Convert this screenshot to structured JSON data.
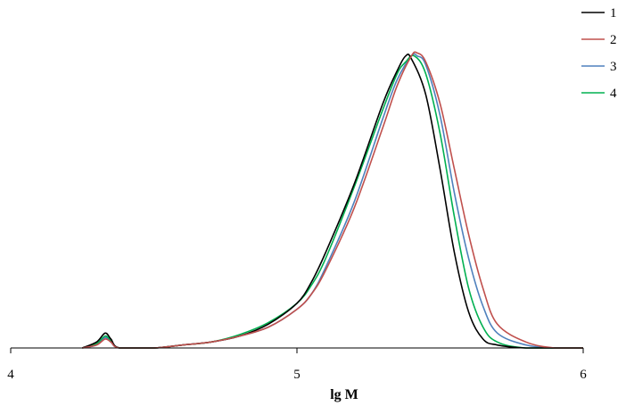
{
  "chart_data": {
    "type": "line",
    "title": "",
    "xlabel": "lg M",
    "ylabel": "",
    "xlim": [
      4,
      6
    ],
    "ylim": [
      0,
      1
    ],
    "x_ticks": [
      "4",
      "5",
      "6"
    ],
    "grid": false,
    "legend_position": "top-right",
    "series": [
      {
        "name": "1",
        "color": "#000000",
        "x": [
          4.25,
          4.3,
          4.33,
          4.35,
          4.38,
          4.5,
          4.6,
          4.7,
          4.8,
          4.9,
          5.0,
          5.05,
          5.1,
          5.2,
          5.3,
          5.35,
          5.38,
          5.4,
          5.45,
          5.5,
          5.55,
          5.6,
          5.65,
          5.7,
          5.8,
          6.0
        ],
        "y": [
          0.0,
          0.02,
          0.05,
          0.03,
          0.0,
          0.0,
          0.01,
          0.02,
          0.04,
          0.08,
          0.15,
          0.22,
          0.32,
          0.55,
          0.82,
          0.93,
          0.98,
          0.97,
          0.85,
          0.6,
          0.32,
          0.12,
          0.03,
          0.01,
          0.0,
          0.0
        ]
      },
      {
        "name": "2",
        "color": "#c0504d",
        "x": [
          4.25,
          4.3,
          4.33,
          4.35,
          4.38,
          4.5,
          4.6,
          4.7,
          4.8,
          4.9,
          5.0,
          5.05,
          5.1,
          5.2,
          5.3,
          5.35,
          5.4,
          5.42,
          5.45,
          5.5,
          5.55,
          5.6,
          5.65,
          5.7,
          5.8,
          5.9,
          6.0
        ],
        "y": [
          0.0,
          0.01,
          0.03,
          0.02,
          0.0,
          0.0,
          0.01,
          0.02,
          0.04,
          0.07,
          0.13,
          0.18,
          0.26,
          0.47,
          0.74,
          0.88,
          0.98,
          0.99,
          0.96,
          0.82,
          0.6,
          0.38,
          0.2,
          0.08,
          0.02,
          0.0,
          0.0
        ]
      },
      {
        "name": "3",
        "color": "#4f81bd",
        "x": [
          4.25,
          4.3,
          4.33,
          4.35,
          4.38,
          4.5,
          4.6,
          4.7,
          4.8,
          4.9,
          5.0,
          5.05,
          5.1,
          5.2,
          5.3,
          5.35,
          5.4,
          5.42,
          5.45,
          5.5,
          5.55,
          5.6,
          5.65,
          5.7,
          5.8,
          5.9,
          6.0
        ],
        "y": [
          0.0,
          0.01,
          0.035,
          0.02,
          0.0,
          0.0,
          0.01,
          0.02,
          0.04,
          0.07,
          0.13,
          0.18,
          0.27,
          0.49,
          0.77,
          0.9,
          0.98,
          0.98,
          0.95,
          0.78,
          0.52,
          0.3,
          0.14,
          0.05,
          0.01,
          0.0,
          0.0
        ]
      },
      {
        "name": "4",
        "color": "#00b050",
        "x": [
          4.25,
          4.3,
          4.33,
          4.35,
          4.38,
          4.5,
          4.6,
          4.7,
          4.8,
          4.9,
          5.0,
          5.05,
          5.1,
          5.2,
          5.3,
          5.35,
          5.38,
          5.41,
          5.45,
          5.5,
          5.55,
          5.6,
          5.65,
          5.7,
          5.8,
          6.0
        ],
        "y": [
          0.0,
          0.015,
          0.04,
          0.025,
          0.0,
          0.0,
          0.01,
          0.02,
          0.045,
          0.085,
          0.15,
          0.21,
          0.3,
          0.54,
          0.8,
          0.92,
          0.96,
          0.98,
          0.92,
          0.72,
          0.44,
          0.2,
          0.07,
          0.02,
          0.0,
          0.0
        ]
      }
    ]
  }
}
